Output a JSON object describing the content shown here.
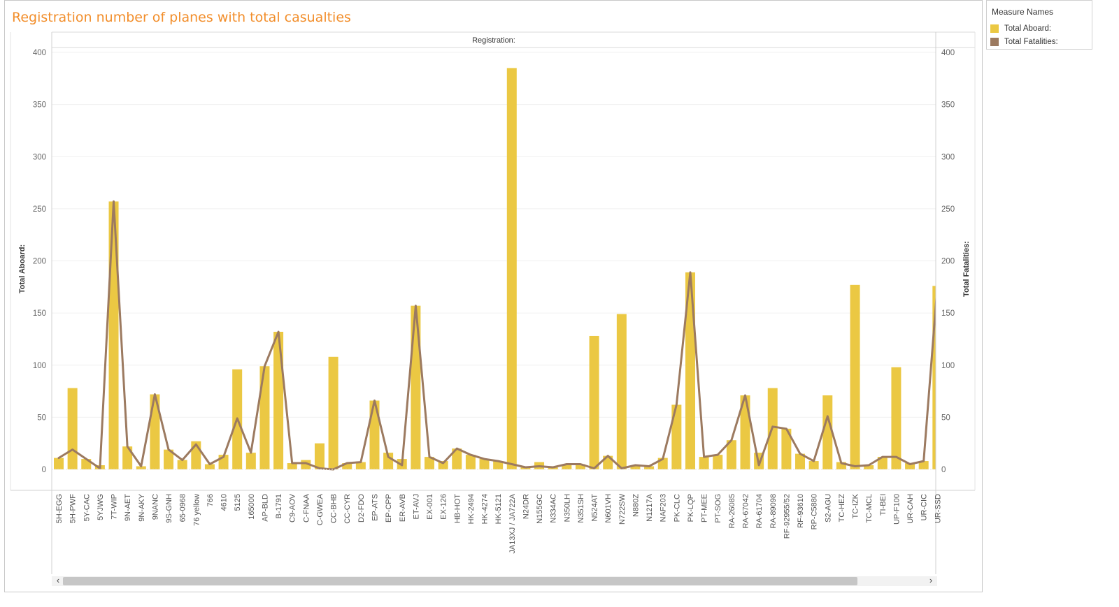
{
  "title": "Registration number of planes with total casualties",
  "legend": {
    "title": "Measure Names",
    "items": [
      {
        "label": "Total Aboard:",
        "color": "#ebc843"
      },
      {
        "label": "Total Fatalities:",
        "color": "#9c7a60"
      }
    ]
  },
  "colors": {
    "bar": "#ebc843",
    "line": "#9c7a60",
    "title": "#f28e2b"
  },
  "scrollbar": {
    "left_icon": "chevron-left-icon",
    "right_icon": "chevron-right-icon",
    "left_glyph": "‹",
    "right_glyph": "›"
  },
  "chart_data": {
    "type": "bar",
    "title": "Registration number of planes with total casualties",
    "column_header": "Registration:",
    "ylabel_left": "Total Aboard:",
    "ylabel_right": "Total Fatalities:",
    "ylim": [
      0,
      400
    ],
    "yticks": [
      0,
      50,
      100,
      150,
      200,
      250,
      300,
      350,
      400
    ],
    "grid": true,
    "categories": [
      "5H-EGG",
      "5H-PWF",
      "5Y-CAC",
      "5YJWG",
      "7T-WIP",
      "9N-AET",
      "9N-AKY",
      "9NANC",
      "9S-GNH",
      "65-0968",
      "76 yellow",
      "766",
      "4610",
      "5125",
      "165000",
      "AP-BLD",
      "B-1791",
      "C9-AOV",
      "C-FNAA",
      "C-GWEA",
      "CC-BHB",
      "CC-CYR",
      "D2-FDO",
      "EP-ATS",
      "EP-CPP",
      "ER-AVB",
      "ET-AVJ",
      "EX-001",
      "EX-126",
      "HB-HOT",
      "HK-2494",
      "HK-4274",
      "HK-5121",
      "JA13XJ / JA722A",
      "N24DR",
      "N155GC",
      "N334AC",
      "N350LH",
      "N351SH",
      "N524AT",
      "N601VH",
      "N722SW",
      "N880Z",
      "N1217A",
      "NAF203",
      "PK-CLC",
      "PK-LQP",
      "PT-MEE",
      "PT-SOG",
      "RA-26085",
      "RA-67042",
      "RA-61704",
      "RA-89098",
      "RF-92955/52",
      "RF-93610",
      "RP-C5880",
      "S2-AGU",
      "TC-HEZ",
      "TC-IZK",
      "TC-MCL",
      "TI-BEI",
      "UP-F100",
      "UR-CAH",
      "UR-CIC",
      "UR-SSD"
    ],
    "series": [
      {
        "name": "Total Aboard:",
        "type": "bar",
        "values": [
          11,
          78,
          10,
          4,
          257,
          22,
          3,
          72,
          19,
          9,
          27,
          5,
          14,
          96,
          16,
          99,
          132,
          6,
          9,
          25,
          108,
          6,
          7,
          66,
          16,
          10,
          157,
          12,
          8,
          20,
          14,
          10,
          8,
          385,
          2,
          7,
          3,
          5,
          5,
          128,
          13,
          149,
          3,
          3,
          11,
          62,
          189,
          12,
          14,
          28,
          71,
          16,
          78,
          39,
          15,
          8,
          71,
          7,
          177,
          4,
          12,
          98,
          6,
          8,
          176
        ]
      },
      {
        "name": "Total Fatalities:",
        "type": "line",
        "values": [
          11,
          19,
          10,
          1,
          257,
          22,
          3,
          72,
          19,
          9,
          24,
          5,
          12,
          49,
          16,
          99,
          132,
          6,
          6,
          1,
          0,
          6,
          7,
          66,
          12,
          4,
          157,
          12,
          6,
          20,
          14,
          10,
          8,
          5,
          2,
          3,
          2,
          5,
          5,
          1,
          13,
          1,
          4,
          3,
          10,
          62,
          189,
          12,
          14,
          28,
          71,
          4,
          41,
          39,
          15,
          8,
          51,
          6,
          3,
          4,
          12,
          12,
          5,
          8,
          176
        ]
      }
    ]
  }
}
